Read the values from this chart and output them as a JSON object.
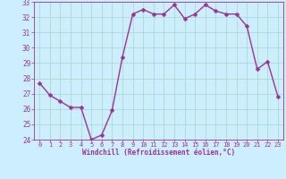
{
  "x": [
    0,
    1,
    2,
    3,
    4,
    5,
    6,
    7,
    8,
    9,
    10,
    11,
    12,
    13,
    14,
    15,
    16,
    17,
    18,
    19,
    20,
    21,
    22,
    23
  ],
  "y": [
    27.7,
    26.9,
    26.5,
    26.1,
    26.1,
    24.0,
    24.3,
    25.9,
    29.4,
    32.2,
    32.5,
    32.2,
    32.2,
    32.8,
    31.9,
    32.2,
    32.8,
    32.4,
    32.2,
    32.2,
    31.4,
    28.6,
    29.1,
    26.8
  ],
  "line_color": "#993399",
  "marker": "D",
  "marker_size": 2.5,
  "bg_color": "#cceeff",
  "grid_color": "#aaddcc",
  "xlabel": "Windchill (Refroidissement éolien,°C)",
  "xlabel_color": "#993399",
  "tick_color": "#993399",
  "ylim": [
    24,
    33
  ],
  "xlim": [
    -0.5,
    23.5
  ],
  "yticks": [
    24,
    25,
    26,
    27,
    28,
    29,
    30,
    31,
    32,
    33
  ],
  "xticks": [
    0,
    1,
    2,
    3,
    4,
    5,
    6,
    7,
    8,
    9,
    10,
    11,
    12,
    13,
    14,
    15,
    16,
    17,
    18,
    19,
    20,
    21,
    22,
    23
  ],
  "line_width": 1.0,
  "figsize": [
    3.2,
    2.0
  ],
  "dpi": 100
}
